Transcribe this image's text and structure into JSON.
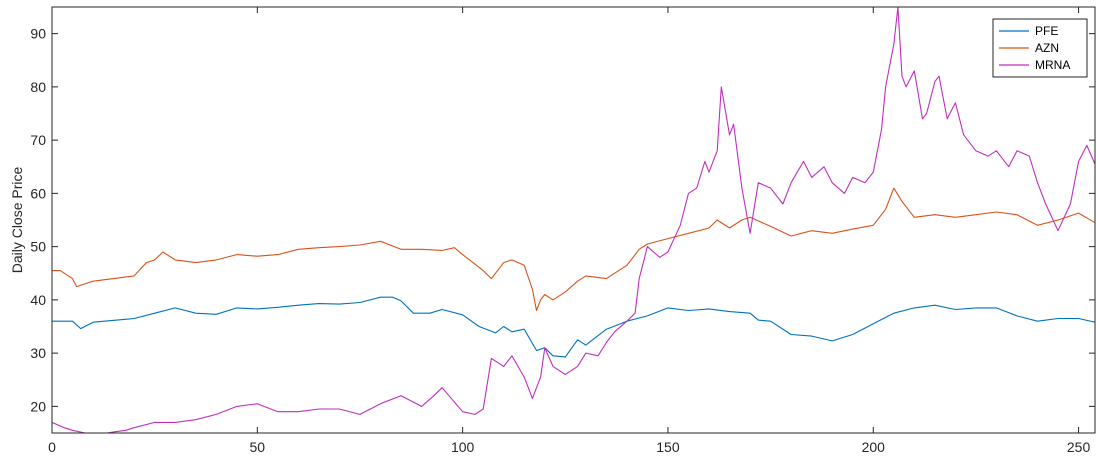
{
  "chart_data": {
    "type": "line",
    "xlabel": "",
    "ylabel": "Daily Close Price",
    "xlim": [
      0,
      254
    ],
    "ylim": [
      15,
      95
    ],
    "xticks": [
      0,
      50,
      100,
      150,
      200,
      250
    ],
    "yticks": [
      20,
      30,
      40,
      50,
      60,
      70,
      80,
      90
    ],
    "grid": false,
    "legend_position": "top-right",
    "series": [
      {
        "name": "PFE",
        "color": "#0072BD",
        "x": [
          0,
          5,
          7,
          10,
          20,
          25,
          30,
          35,
          40,
          45,
          50,
          55,
          60,
          65,
          70,
          75,
          80,
          83,
          85,
          88,
          92,
          95,
          100,
          104,
          108,
          110,
          112,
          115,
          118,
          120,
          122,
          125,
          128,
          130,
          135,
          140,
          145,
          150,
          155,
          160,
          165,
          170,
          172,
          175,
          180,
          185,
          190,
          195,
          200,
          205,
          210,
          215,
          220,
          225,
          230,
          235,
          240,
          245,
          250,
          254
        ],
        "y": [
          36,
          36,
          34.6,
          35.8,
          36.5,
          37.5,
          38.5,
          37.5,
          37.3,
          38.5,
          38.3,
          38.6,
          39,
          39.3,
          39.2,
          39.5,
          40.5,
          40.5,
          39.8,
          37.5,
          37.5,
          38.2,
          37.2,
          35,
          33.8,
          35,
          34,
          34.5,
          30.5,
          31,
          29.5,
          29.3,
          32.5,
          31.5,
          34.5,
          36,
          37,
          38.5,
          38,
          38.3,
          37.8,
          37.5,
          36.2,
          36,
          33.5,
          33.2,
          32.3,
          33.5,
          35.5,
          37.5,
          38.5,
          39,
          38.2,
          38.5,
          38.5,
          37,
          36,
          36.5,
          36.5,
          35.8
        ]
      },
      {
        "name": "AZN",
        "color": "#D95319",
        "x": [
          0,
          2,
          5,
          6,
          8,
          10,
          15,
          20,
          23,
          25,
          27,
          30,
          35,
          40,
          45,
          50,
          55,
          60,
          65,
          70,
          75,
          80,
          85,
          90,
          95,
          98,
          100,
          105,
          107,
          110,
          112,
          115,
          117,
          118,
          119,
          120,
          122,
          125,
          128,
          130,
          135,
          140,
          143,
          145,
          150,
          155,
          160,
          162,
          165,
          168,
          170,
          175,
          180,
          185,
          190,
          195,
          200,
          203,
          205,
          207,
          210,
          215,
          220,
          225,
          230,
          235,
          240,
          245,
          250,
          254
        ],
        "y": [
          45.5,
          45.5,
          44,
          42.5,
          43,
          43.5,
          44,
          44.5,
          47,
          47.5,
          49,
          47.5,
          47,
          47.5,
          48.5,
          48.2,
          48.5,
          49.5,
          49.8,
          50,
          50.3,
          51,
          49.5,
          49.5,
          49.3,
          49.8,
          48.5,
          45.5,
          44,
          47,
          47.5,
          46.5,
          42,
          38,
          40,
          41,
          40,
          41.5,
          43.5,
          44.5,
          44,
          46.5,
          49.5,
          50.5,
          51.5,
          52.5,
          53.5,
          55,
          53.5,
          55,
          55.5,
          53.8,
          52,
          53,
          52.5,
          53.3,
          54,
          57,
          61,
          58.5,
          55.5,
          56,
          55.5,
          56,
          56.5,
          56,
          54,
          55,
          56.3,
          54.5
        ]
      },
      {
        "name": "MRNA",
        "color": "#BF2EBF",
        "x": [
          0,
          3,
          5,
          8,
          12,
          15,
          18,
          20,
          25,
          30,
          35,
          40,
          45,
          50,
          55,
          60,
          65,
          70,
          75,
          80,
          85,
          90,
          93,
          95,
          100,
          103,
          105,
          107,
          110,
          112,
          115,
          117,
          119,
          120,
          122,
          125,
          128,
          130,
          133,
          135,
          137,
          140,
          142,
          143,
          145,
          148,
          150,
          153,
          155,
          157,
          159,
          160,
          162,
          163,
          165,
          166,
          168,
          170,
          172,
          175,
          178,
          180,
          183,
          185,
          188,
          190,
          193,
          195,
          198,
          200,
          202,
          203,
          205,
          206,
          207,
          208,
          210,
          212,
          213,
          215,
          216,
          218,
          220,
          222,
          225,
          228,
          230,
          233,
          235,
          238,
          240,
          242,
          245,
          248,
          250,
          252,
          254
        ],
        "y": [
          17,
          16,
          15.5,
          15,
          14.8,
          15.2,
          15.5,
          16,
          17,
          17,
          17.5,
          18.5,
          20,
          20.5,
          19,
          19,
          19.5,
          19.5,
          18.5,
          20.5,
          22,
          20,
          22,
          23.5,
          19,
          18.5,
          19.5,
          29,
          27.5,
          29.5,
          25.5,
          21.5,
          25.5,
          31,
          27.5,
          26,
          27.5,
          30,
          29.5,
          32,
          34,
          36,
          37.5,
          44,
          50,
          48,
          49,
          54,
          60,
          61,
          66,
          64,
          68,
          80,
          71,
          73,
          61,
          52.5,
          62,
          61,
          58,
          62,
          66,
          63,
          65,
          62,
          60,
          63,
          62,
          64,
          72,
          80,
          88,
          95,
          82,
          80,
          83,
          74,
          75,
          81,
          82,
          74,
          77,
          71,
          68,
          67,
          68,
          65,
          68,
          67,
          62,
          58,
          53,
          58,
          66,
          69,
          65.5
        ]
      }
    ]
  }
}
